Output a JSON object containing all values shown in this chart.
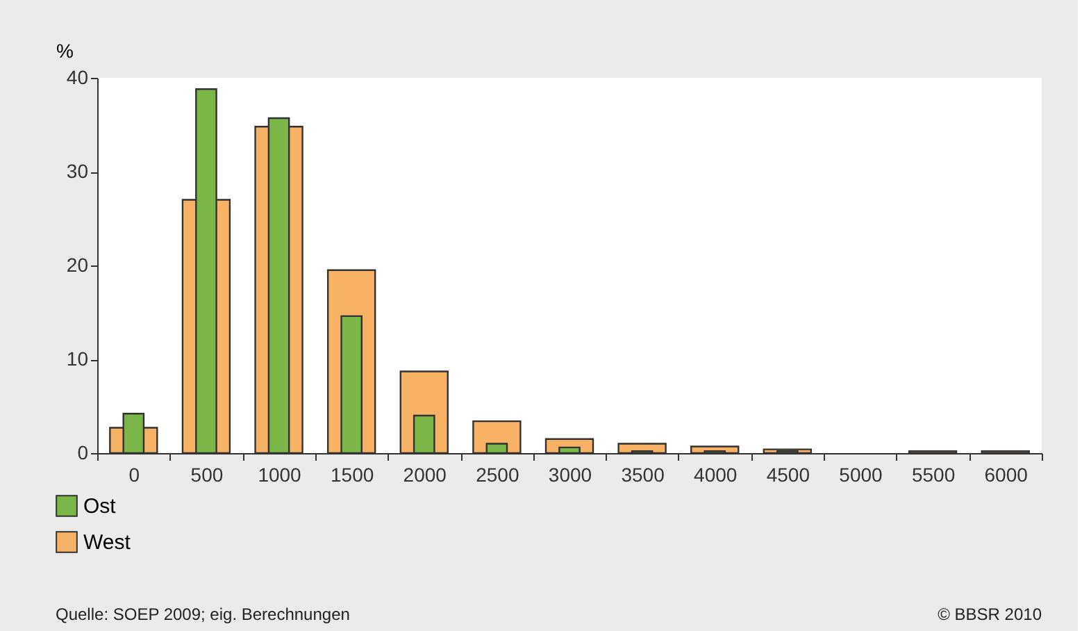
{
  "chart_data": {
    "type": "bar",
    "ylabel": "%",
    "categories": [
      "0",
      "500",
      "1000",
      "1500",
      "2000",
      "2500",
      "3000",
      "3500",
      "4000",
      "4500",
      "5000",
      "5500",
      "6000"
    ],
    "series": [
      {
        "name": "Ost",
        "color": "#7ab648",
        "values": [
          4.2,
          38.8,
          35.7,
          14.6,
          4.0,
          1.0,
          0.6,
          0.2,
          0.2,
          0.2,
          null,
          null,
          null
        ]
      },
      {
        "name": "West",
        "color": "#f7b266",
        "values": [
          2.7,
          27,
          34.8,
          19.5,
          8.7,
          3.4,
          1.5,
          1.0,
          0.7,
          0.4,
          null,
          0.2,
          0.2
        ]
      }
    ],
    "ylim": [
      0,
      40
    ],
    "yticks": [
      0,
      10,
      20,
      30,
      40
    ],
    "grid": false,
    "legend": "bottom left",
    "annotations": [
      "Quelle: SOEP 2009; eig. Berechnungen",
      "© BBSR 2010"
    ]
  }
}
